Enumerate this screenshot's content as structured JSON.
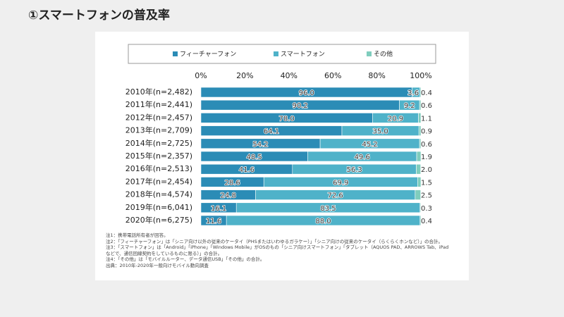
{
  "chart_data": {
    "type": "bar",
    "orientation": "horizontal",
    "stacked": true,
    "title": "①スマートフォンの普及率",
    "categories": [
      "2010年(n=2,482)",
      "2011年(n=2,441)",
      "2012年(n=2,457)",
      "2013年(n=2,709)",
      "2014年(n=2,725)",
      "2015年(n=2,357)",
      "2016年(n=2,513)",
      "2017年(n=2,454)",
      "2018年(n=4,574)",
      "2019年(n=6,041)",
      "2020年(n=6,275)"
    ],
    "series": [
      {
        "name": "フィーチャーフォン",
        "color": "#2b8cb6",
        "values": [
          96.0,
          90.2,
          78.0,
          64.1,
          54.2,
          48.5,
          41.6,
          28.6,
          24.8,
          16.1,
          11.6
        ],
        "value_labels": [
          "96.0",
          "90.2",
          "78.0",
          "64.1",
          "54.2",
          "48.5",
          "41.6",
          "28.6",
          "24.8",
          "16.1",
          "11.6"
        ]
      },
      {
        "name": "スマートフォン",
        "color": "#4fb2c9",
        "values": [
          3.6,
          9.2,
          20.9,
          35.0,
          45.2,
          49.6,
          56.3,
          69.9,
          72.6,
          83.5,
          88.0
        ],
        "value_labels": [
          "3.6",
          "9.2",
          "20.9",
          "35.0",
          "45.2",
          "49.6",
          "56.3",
          "69.9",
          "72.6",
          "83.5",
          "88.0"
        ]
      },
      {
        "name": "その他",
        "color": "#7fcdbd",
        "values": [
          0.4,
          0.6,
          1.1,
          0.9,
          0.6,
          1.9,
          2.0,
          1.5,
          2.5,
          0.3,
          0.4
        ],
        "value_labels": [
          "0.4",
          "0.6",
          "1.1",
          "0.9",
          "0.6",
          "1.9",
          "2.0",
          "1.5",
          "2.5",
          "0.3",
          "0.4"
        ]
      }
    ],
    "xlim": [
      0,
      100
    ],
    "xticks": [
      {
        "value": 0,
        "label": "0%"
      },
      {
        "value": 20,
        "label": "20%"
      },
      {
        "value": 40,
        "label": "40%"
      },
      {
        "value": 60,
        "label": "60%"
      },
      {
        "value": 80,
        "label": "80%"
      },
      {
        "value": 100,
        "label": "100%"
      }
    ],
    "grid": false,
    "notes": [
      "注1：携帯電話所有者が回答。",
      "注2：「フィーチャーフォン」は「シニア向け以外の従来のケータイ（PHSまたはいわゆるガラケー）」「シニア向けの従来のケータイ（らくらくホンなど）」の合計。",
      "注3：「スマートフォン」は「Android」「iPhone」「Windows Mobile」がOSのもの「シニア向けスマートフォン」「タブレット（AQUOS PAD、ARROWS Tab、iPadなどで、通信回線契約をしているものに限る）」の合計。",
      "注4：「その他」は「モバイルルーター、データ通信USB」「その他」の合計。",
      "出典：2010年-2020年一般向けモバイル動向調査"
    ]
  }
}
